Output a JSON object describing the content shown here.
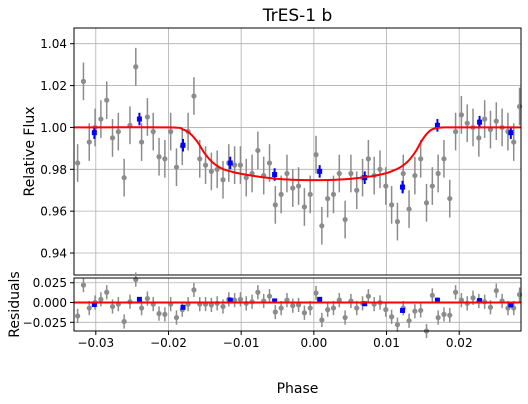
{
  "chart_data": [
    {
      "type": "scatter",
      "panel": "main",
      "title": "TrES-1 b",
      "xlabel": "",
      "ylabel": "Relative Flux",
      "xlim": [
        -0.033,
        0.0285
      ],
      "ylim": [
        0.9295,
        1.0475
      ],
      "yticks": [
        0.94,
        0.96,
        0.98,
        1.0,
        1.02,
        1.04
      ],
      "ytick_labels": [
        "0.94",
        "0.96",
        "0.98",
        "1.00",
        "1.02",
        "1.04"
      ],
      "grid": true,
      "colors": {
        "raw": "#8c8c8c",
        "binned": "#0000ff",
        "model": "#ff0000"
      },
      "series": [
        {
          "kind": "raw",
          "x": [
            -0.0325,
            -0.0317,
            -0.0309,
            -0.0301,
            -0.0293,
            -0.0285,
            -0.0277,
            -0.0269,
            -0.0261,
            -0.0253,
            -0.0245,
            -0.0237,
            -0.0229,
            -0.0221,
            -0.0213,
            -0.0205,
            -0.0197,
            -0.0189,
            -0.0181,
            -0.0173,
            -0.0165,
            -0.0157,
            -0.0149,
            -0.0141,
            -0.0133,
            -0.0125,
            -0.0117,
            -0.0109,
            -0.0101,
            -0.0093,
            -0.0085,
            -0.0077,
            -0.0069,
            -0.0061,
            -0.0053,
            -0.0045,
            -0.0037,
            -0.0029,
            -0.0021,
            -0.0013,
            -0.0005,
            0.0003,
            0.0011,
            0.0019,
            0.0027,
            0.0035,
            0.0043,
            0.0051,
            0.0059,
            0.0067,
            0.0075,
            0.0083,
            0.0091,
            0.0099,
            0.0107,
            0.0115,
            0.0123,
            0.0131,
            0.0139,
            0.0147,
            0.0155,
            0.0163,
            0.0171,
            0.0179,
            0.0187,
            0.0195,
            0.0203,
            0.0211,
            0.0219,
            0.0227,
            0.0235,
            0.0243,
            0.0251,
            0.0259,
            0.0267,
            0.0275,
            0.0283
          ],
          "y": [
            0.983,
            1.022,
            0.993,
            1.0,
            1.004,
            1.013,
            0.995,
            0.998,
            0.976,
            1.001,
            1.029,
            0.993,
            1.005,
            0.998,
            0.986,
            0.985,
            0.998,
            0.981,
            0.991,
            0.998,
            1.015,
            0.985,
            0.982,
            0.979,
            0.98,
            0.975,
            0.983,
            0.982,
            0.982,
            0.976,
            0.978,
            0.989,
            0.977,
            0.983,
            0.963,
            0.968,
            0.978,
            0.971,
            0.972,
            0.962,
            0.968,
            0.987,
            0.953,
            0.966,
            0.968,
            0.978,
            0.956,
            0.978,
            0.97,
            0.976,
            0.985,
            0.977,
            0.98,
            0.972,
            0.963,
            0.955,
            0.978,
            0.961,
            0.977,
            0.985,
            0.964,
            0.972,
            0.978,
            0.985,
            0.966,
            0.998,
            1.006,
            1.002,
            1.0,
            0.995,
            1.004,
            0.999,
            1.003,
            1.0,
            0.998,
            0.993,
            1.01
          ],
          "yerr": 0.009
        },
        {
          "kind": "binned",
          "x": [
            -0.0302,
            -0.024,
            -0.018,
            -0.0115,
            -0.0054,
            0.0008,
            0.007,
            0.0122,
            0.017,
            0.0228,
            0.0271
          ],
          "y": [
            0.9975,
            1.004,
            0.9915,
            0.983,
            0.9775,
            0.979,
            0.976,
            0.9715,
            1.001,
            1.0025,
            0.9975
          ],
          "yerr": 0.003
        },
        {
          "kind": "model",
          "name": "",
          "x": [
            -0.033,
            -0.02,
            -0.018,
            -0.017,
            -0.016,
            -0.015,
            -0.014,
            -0.013,
            -0.012,
            -0.01,
            -0.008,
            -0.006,
            -0.004,
            -0.002,
            0.0,
            0.002,
            0.004,
            0.006,
            0.008,
            0.01,
            0.011,
            0.012,
            0.013,
            0.014,
            0.015,
            0.016,
            0.017,
            0.018,
            0.02,
            0.0285
          ],
          "y": [
            1.0,
            1.0,
            0.999,
            0.997,
            0.993,
            0.9875,
            0.9835,
            0.981,
            0.9795,
            0.9778,
            0.9767,
            0.9758,
            0.9752,
            0.9749,
            0.9748,
            0.9749,
            0.9752,
            0.9758,
            0.9767,
            0.9782,
            0.9795,
            0.9812,
            0.984,
            0.9885,
            0.9945,
            0.9985,
            0.9998,
            1.0,
            1.0,
            1.0
          ]
        }
      ]
    },
    {
      "type": "scatter",
      "panel": "residuals",
      "xlabel": "Phase",
      "ylabel": "Residuals",
      "xlim": [
        -0.033,
        0.0285
      ],
      "ylim": [
        -0.036,
        0.031
      ],
      "xticks": [
        -0.03,
        -0.02,
        -0.01,
        0.0,
        0.01,
        0.02
      ],
      "xtick_labels": [
        "−0.03",
        "−0.02",
        "−0.01",
        "0.00",
        "0.01",
        "0.02"
      ],
      "yticks": [
        -0.025,
        0.0,
        0.025
      ],
      "ytick_labels": [
        "−0.025",
        "0.000",
        "0.025"
      ],
      "grid": true,
      "series": [
        {
          "kind": "raw",
          "yerr": 0.009,
          "y": [
            -0.017,
            0.022,
            -0.007,
            0.0,
            0.004,
            0.013,
            -0.005,
            -0.002,
            -0.024,
            0.001,
            0.029,
            -0.007,
            0.005,
            -0.002,
            -0.014,
            -0.015,
            -0.002,
            -0.019,
            -0.009,
            -0.002,
            0.016,
            -0.002,
            -0.002,
            -0.003,
            -0.001,
            -0.005,
            0.004,
            0.003,
            0.004,
            -0.001,
            0.001,
            0.013,
            0.002,
            0.008,
            -0.012,
            -0.007,
            0.003,
            -0.004,
            -0.003,
            -0.013,
            -0.007,
            0.012,
            -0.022,
            -0.009,
            -0.007,
            0.003,
            -0.019,
            0.002,
            -0.007,
            -0.001,
            0.008,
            -0.002,
            0.0,
            -0.009,
            -0.018,
            -0.028,
            -0.007,
            -0.023,
            -0.011,
            -0.01,
            -0.036,
            0.009,
            -0.019,
            -0.015,
            -0.016,
            0.013,
            0.003,
            -0.001,
            0.006,
            0.002,
            0.001,
            -0.006,
            0.015,
            0.002,
            -0.007,
            -0.007,
            0.01
          ]
        },
        {
          "kind": "binned",
          "yerr": 0.003,
          "y": [
            -0.0025,
            0.004,
            -0.006,
            0.003,
            0.002,
            0.004,
            -0.0015,
            -0.01,
            0.003,
            0.0025,
            -0.003
          ]
        },
        {
          "kind": "model",
          "y": 0.0
        }
      ]
    }
  ]
}
